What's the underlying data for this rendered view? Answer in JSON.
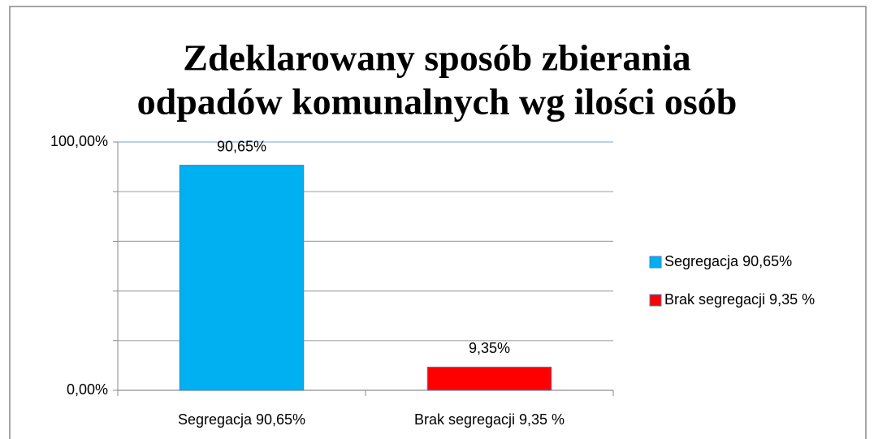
{
  "chart_data": {
    "type": "bar",
    "title": [
      "Zdeklarowany sposób zbierania",
      "odpadów komunalnych wg ilości osób"
    ],
    "categories": [
      "Segregacja 90,65%",
      "Brak segregacji 9,35 %"
    ],
    "series": [
      {
        "name": "Segregacja 90,65%",
        "color": "#00b0f0",
        "values": [
          90.65,
          null
        ],
        "value_labels": [
          "90,65%",
          null
        ]
      },
      {
        "name": "Brak segregacji 9,35 %",
        "color": "#ff0000",
        "values": [
          null,
          9.35
        ],
        "value_labels": [
          null,
          "9,35%"
        ]
      }
    ],
    "ylim": [
      0,
      100
    ],
    "yticks": [
      {
        "value": 0,
        "label": "0,00%"
      },
      {
        "value": 20,
        "label": null
      },
      {
        "value": 40,
        "label": null
      },
      {
        "value": 60,
        "label": null
      },
      {
        "value": 80,
        "label": null
      },
      {
        "value": 100,
        "label": "100,00%"
      }
    ],
    "grid": true,
    "legend": "right"
  }
}
